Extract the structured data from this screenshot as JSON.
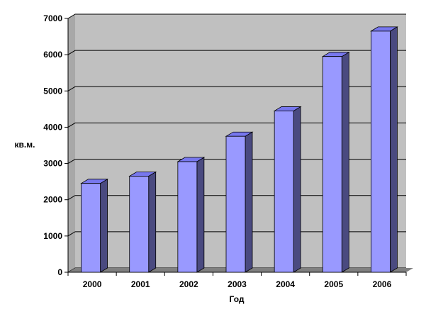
{
  "chart_data": {
    "type": "bar",
    "title": "",
    "xlabel": "Год",
    "ylabel": "кв.м.",
    "categories": [
      "2000",
      "2001",
      "2002",
      "2003",
      "2004",
      "2005",
      "2006"
    ],
    "values": [
      2450,
      2650,
      3050,
      3750,
      4450,
      5950,
      6650
    ],
    "ylim": [
      0,
      7000
    ],
    "yticks": [
      "0",
      "1000",
      "2000",
      "3000",
      "4000",
      "5000",
      "6000",
      "7000"
    ],
    "grid": true,
    "legend": "none",
    "colors": {
      "wall": "#c0c0c0",
      "floor": "#808080",
      "bar_front": "#9999ff",
      "bar_top": "#7777ee",
      "bar_side": "#4a4a80",
      "gridline": "#000000"
    }
  }
}
